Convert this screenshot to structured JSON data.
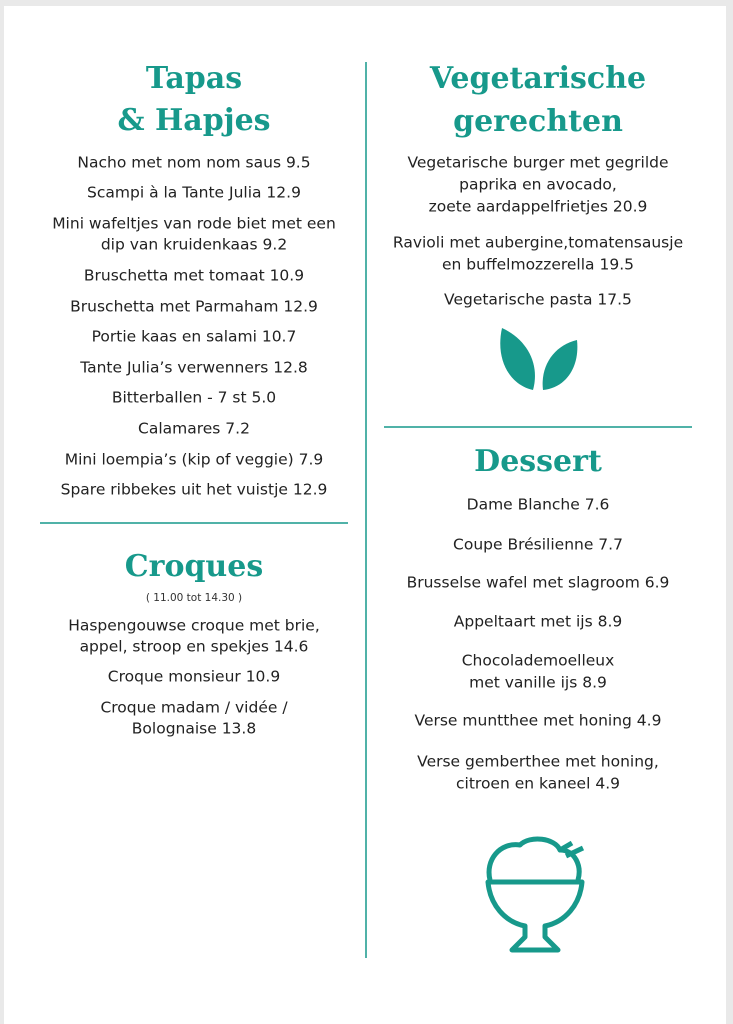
{
  "left_column": {
    "sections": [
      {
        "title": [
          "Tapas",
          "& Hapjes"
        ],
        "items": [
          [
            "Nacho met nom nom saus 9.5"
          ],
          [
            "Scampi à la Tante Julia 12.9"
          ],
          [
            "Mini wafeltjes van rode biet met een",
            "dip van kruidenkaas 9.2"
          ],
          [
            "Bruschetta met tomaat 10.9"
          ],
          [
            "Bruschetta met Parmaham 12.9"
          ],
          [
            "Portie kaas en salami 10.7"
          ],
          [
            "Tante Julia’s verwenners 12.8"
          ],
          [
            "Bitterballen - 7 st 5.0"
          ],
          [
            "Calamares 7.2"
          ],
          [
            "Mini loempia’s (kip of veggie) 7.9"
          ],
          [
            "Spare ribbekes uit het vuistje 12.9"
          ]
        ]
      },
      {
        "title": [
          "Croques"
        ],
        "note": "( 11.00 tot 14.30 )",
        "items": [
          [
            "Haspengouwse croque met brie,",
            "appel, stroop en spekjes 14.6"
          ],
          [
            "Croque monsieur 10.9"
          ],
          [
            "Croque madam  / vidée /",
            "Bolognaise 13.8"
          ]
        ]
      }
    ]
  },
  "right_column": {
    "sections": [
      {
        "title": [
          "Vegetarische",
          "gerechten"
        ],
        "items": [
          [
            "Vegetarische burger met gegrilde",
            "paprika en avocado,",
            "zoete aardappelfrietjes 20.9"
          ],
          [
            "Ravioli met aubergine,tomatensausje",
            "en buffelmozzerella 19.5"
          ],
          [
            "Vegetarische pasta 17.5"
          ]
        ]
      },
      {
        "title": [
          "Dessert"
        ],
        "items": [
          [
            "Dame Blanche 7.6"
          ],
          [
            "Coupe Brésilienne 7.7"
          ],
          [
            "Brusselse wafel met slagroom 6.9"
          ],
          [
            "Appeltaart met ijs 8.9"
          ],
          [
            "Chocolademoelleux",
            "met vanille ijs 8.9"
          ],
          [
            "Verse muntthee met honing 4.9"
          ],
          [
            "Verse gemberthee met honing,",
            "citroen en kaneel 4.9"
          ]
        ]
      }
    ]
  }
}
